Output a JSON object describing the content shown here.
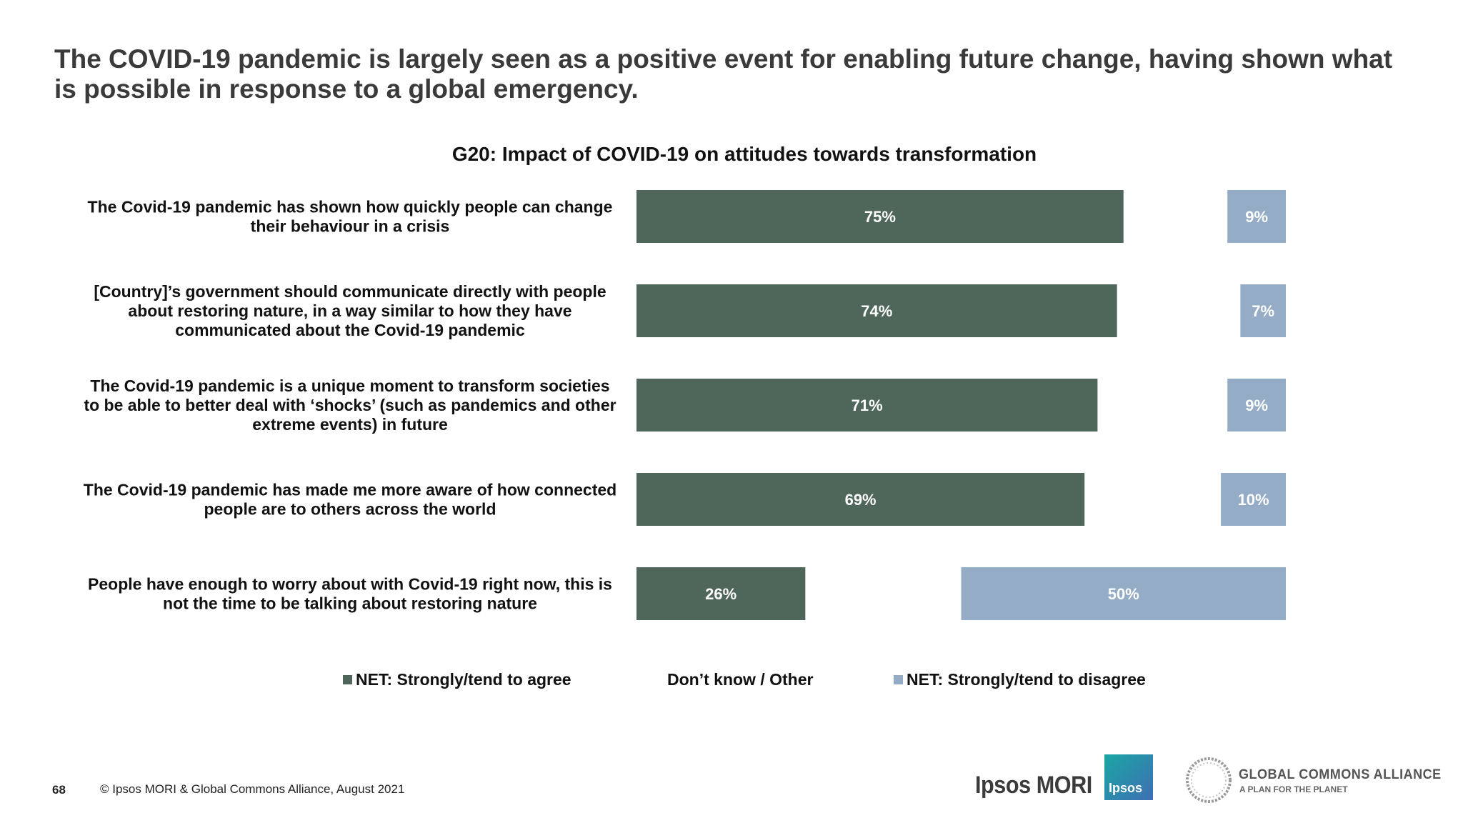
{
  "headline": "The COVID-19 pandemic is largely seen as a positive event for enabling future change, having shown what is possible in response to a global emergency.",
  "colors": {
    "agree": "#4f665b",
    "disagree": "#94acc6",
    "label_text": "#ffffff"
  },
  "chart_data": {
    "type": "bar",
    "orientation": "horizontal-diverging",
    "title": "G20: Impact of COVID-19 on attitudes towards transformation",
    "categories": [
      "The Covid-19 pandemic has shown how quickly people can change their behaviour in a crisis",
      "[Country]’s government should communicate directly with people about restoring nature, in a way similar to how they have communicated about the Covid-19 pandemic",
      "The Covid-19 pandemic is a unique moment to transform societies to be able to better deal with ‘shocks’ (such as pandemics and other extreme events) in future",
      "The Covid-19 pandemic has made me more aware of how connected people are to others across the world",
      "People have enough to worry about with Covid-19 right now, this is not the time to be talking about restoring nature"
    ],
    "category_lines": [
      [
        "The Covid-19 pandemic has shown how quickly people can change",
        "their behaviour in a crisis"
      ],
      [
        "[Country]’s government should communicate directly with people",
        "about restoring nature, in a way similar to how they have",
        "communicated about the Covid-19 pandemic"
      ],
      [
        "The Covid-19 pandemic is a unique moment to transform societies",
        "to be able to better deal with ‘shocks’ (such as pandemics and other",
        "extreme events) in future"
      ],
      [
        "The Covid-19 pandemic has made me more aware of how connected",
        "people are to others across the world"
      ],
      [
        "People have enough to worry about with Covid-19 right now, this is",
        "not the time to be talking about restoring nature"
      ]
    ],
    "series": [
      {
        "name": "NET: Strongly/tend to agree",
        "values": [
          75,
          74,
          71,
          69,
          26
        ],
        "labels": [
          "75%",
          "74%",
          "71%",
          "69%",
          "26%"
        ]
      },
      {
        "name": "NET: Strongly/tend to disagree",
        "values": [
          9,
          7,
          9,
          10,
          50
        ],
        "labels": [
          "9%",
          "7%",
          "9%",
          "10%",
          "50%"
        ]
      }
    ],
    "legend": [
      "NET: Strongly/tend to agree",
      "Don’t know / Other",
      "NET: Strongly/tend to disagree"
    ],
    "legend_position": "bottom",
    "xlim": [
      0,
      100
    ],
    "grid": false
  },
  "footer": {
    "page_number": "68",
    "copyright": "© Ipsos MORI & Global Commons Alliance, August 2021"
  },
  "logos": {
    "ipsos_mori": "Ipsos MORI",
    "ipsos_box": "Ipsos",
    "gca_title": "GLOBAL COMMONS ALLIANCE",
    "gca_subtitle": "A PLAN FOR THE PLANET"
  }
}
